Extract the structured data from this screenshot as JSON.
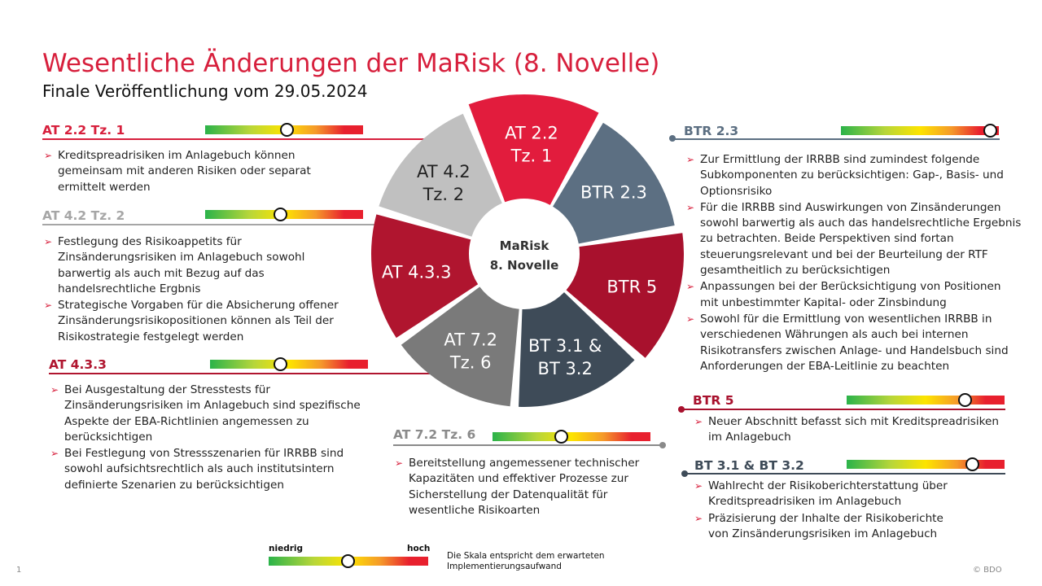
{
  "header": {
    "title": "Wesentliche Änderungen der MaRisk (8. Novelle)",
    "subtitle": "Finale Veröffentlichung vom 29.05.2024"
  },
  "wheel": {
    "center_line1": "MaRisk",
    "center_line2": "8. Novelle",
    "segments": [
      {
        "line1": "AT 2.2",
        "line2": "Tz. 1",
        "color": "#e21c3d"
      },
      {
        "line1": "BTR 2.3",
        "line2": "",
        "color": "#5c6f82"
      },
      {
        "line1": "BTR 5",
        "line2": "",
        "color": "#a8112d"
      },
      {
        "line1": "BT 3.1 &",
        "line2": "BT 3.2",
        "color": "#3e4b58"
      },
      {
        "line1": "AT 7.2",
        "line2": "Tz. 6",
        "color": "#7a7a7a"
      },
      {
        "line1": "AT 4.3.3",
        "line2": "",
        "color": "#b0152f"
      },
      {
        "line1": "AT 4.2",
        "line2": "Tz. 2",
        "color": "#c0c0c0"
      }
    ]
  },
  "sections": {
    "at22": {
      "heading": "AT 2.2 Tz. 1",
      "color": "#d71f3c",
      "level": 0.52,
      "bullets": [
        "Kreditspreadrisiken im Anlagebuch können gemeinsam mit anderen Risiken oder separat ermittelt werden"
      ]
    },
    "at42": {
      "heading": "AT 4.2 Tz. 2",
      "color": "#a6a6a6",
      "level": 0.48,
      "bullets": [
        "Festlegung des Risikoappetits für Zinsänderungsrisiken im Anlagebuch sowohl barwertig als auch mit Bezug auf das handelsrechtliche Ergbnis",
        "Strategische Vorgaben für die Absicherung offener Zinsänderungsrisikopositionen können als Teil der Risikostrategie festgelegt werden"
      ]
    },
    "at433": {
      "heading": "AT 4.3.3",
      "color": "#b0152f",
      "level": 0.45,
      "bullets": [
        "Bei Ausgestaltung der Stresstests für Zinsänderungsrisiken im Anlagebuch sind spezifische Aspekte der EBA-Richtlinien angemessen zu berücksichtigen",
        "Bei Festlegung von Stressszenarien für IRRBB sind sowohl aufsichtsrechtlich als auch institutsintern definierte Szenarien zu berücksichtigen"
      ]
    },
    "at72": {
      "heading": "AT 7.2 Tz. 6",
      "color": "#8a8a8a",
      "level": 0.44,
      "bullets": [
        "Bereitstellung angemessener technischer Kapazitäten und effektiver Prozesse zur Sicherstellung der Datenqualität für wesentliche Risikoarten"
      ]
    },
    "btr23": {
      "heading": "BTR 2.3",
      "color": "#5c6f82",
      "level": 0.95,
      "bullets": [
        "Zur Ermittlung der IRRBB sind zumindest folgende Subkomponenten zu berücksichtigen: Gap-, Basis- und Optionsrisiko",
        "Für die IRRBB sind Auswirkungen von Zinsänderungen sowohl barwertig als auch das handelsrechtliche Ergebnis zu betrachten. Beide Perspektiven sind fortan steuerungsrelevant und bei der Beurteilung der RTF gesamtheitlich zu berücksichtigen",
        "Anpassungen bei der Berücksichtigung von Positionen mit unbestimmter Kapital- oder Zinsbindung",
        "Sowohl für die Ermittlung von wesentlichen IRRBB in verschiedenen Währungen als auch bei internen Risikotransfers zwischen Anlage- und Handelsbuch sind Anforderungen der EBA-Leitlinie zu beachten"
      ]
    },
    "btr5": {
      "heading": "BTR 5",
      "color": "#a8112d",
      "level": 0.75,
      "bullets": [
        "Neuer Abschnitt befasst sich mit Kreditspreadrisiken im Anlagebuch"
      ]
    },
    "bt31": {
      "heading": "BT 3.1 & BT 3.2",
      "color": "#3e4b58",
      "level": 0.8,
      "bullets": [
        "Wahlrecht der Risikoberichterstattung über Kreditspreadrisiken im Anlagebuch",
        "Präzisierung der Inhalte der Risikoberichte von Zinsänderungsrisiken im Anlagebuch"
      ]
    }
  },
  "legend": {
    "low": "niedrig",
    "high": "hoch",
    "level": 0.5,
    "note": "Die Skala entspricht dem erwarteten Implementierungsaufwand"
  },
  "footer": {
    "page": "1",
    "copyright": "© BDO"
  }
}
